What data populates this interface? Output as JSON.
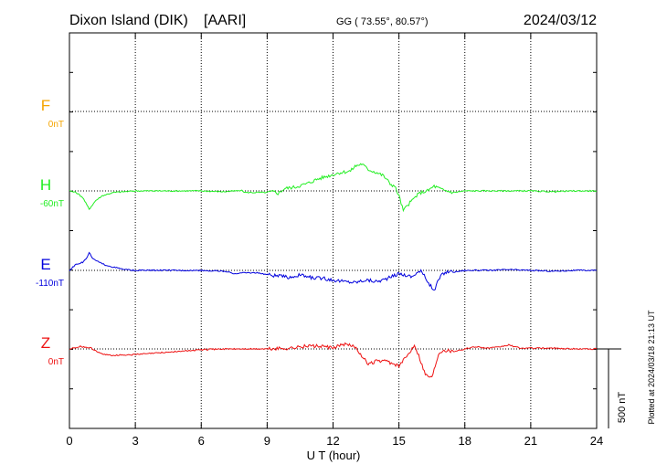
{
  "header": {
    "station": "Dixon Island (DIK)",
    "source": "[AARI]",
    "coords": "GG ( 73.55°,  80.57°)",
    "date": "2024/03/12"
  },
  "chart_data": {
    "type": "line",
    "xlabel": "U T (hour)",
    "xlim": [
      0,
      24
    ],
    "xticks": [
      "0",
      "3",
      "6",
      "9",
      "12",
      "15",
      "18",
      "21",
      "24"
    ],
    "scale_label": "500 nT",
    "plotted_note": "Plotted at 2024/03/18 21:13 UT",
    "colors": {
      "F": "#f5a500",
      "H": "#22ee22",
      "E": "#0000dd",
      "Z": "#ee1111"
    },
    "series": [
      {
        "name": "F",
        "baseline_label": "0nT",
        "points": []
      },
      {
        "name": "H",
        "baseline_label": "-60nT",
        "points": [
          [
            0,
            0
          ],
          [
            0.3,
            -10
          ],
          [
            0.6,
            -40
          ],
          [
            0.9,
            -115
          ],
          [
            1.2,
            -60
          ],
          [
            1.5,
            -30
          ],
          [
            2,
            -10
          ],
          [
            2.5,
            -5
          ],
          [
            3,
            0
          ],
          [
            4,
            0
          ],
          [
            5,
            0
          ],
          [
            6,
            0
          ],
          [
            7,
            -5
          ],
          [
            7.6,
            0
          ],
          [
            7.8,
            5
          ],
          [
            8,
            -10
          ],
          [
            8.5,
            -10
          ],
          [
            9,
            -10
          ],
          [
            9.3,
            -5
          ],
          [
            9.5,
            -15
          ],
          [
            9.8,
            15
          ],
          [
            10.3,
            25
          ],
          [
            10.8,
            45
          ],
          [
            11.3,
            75
          ],
          [
            11.8,
            95
          ],
          [
            12.3,
            115
          ],
          [
            12.8,
            125
          ],
          [
            13,
            155
          ],
          [
            13.3,
            170
          ],
          [
            13.6,
            135
          ],
          [
            14,
            115
          ],
          [
            14.3,
            95
          ],
          [
            14.6,
            45
          ],
          [
            14.8,
            30
          ],
          [
            15,
            -30
          ],
          [
            15.2,
            -125
          ],
          [
            15.4,
            -90
          ],
          [
            15.6,
            -60
          ],
          [
            15.8,
            -30
          ],
          [
            16,
            -10
          ],
          [
            16.3,
            0
          ],
          [
            16.6,
            30
          ],
          [
            17,
            5
          ],
          [
            17.5,
            -10
          ],
          [
            18,
            0
          ],
          [
            19,
            0
          ],
          [
            20,
            0
          ],
          [
            21,
            0
          ],
          [
            22,
            -5
          ],
          [
            23,
            0
          ],
          [
            24,
            0
          ]
        ]
      },
      {
        "name": "E",
        "baseline_label": "-110nT",
        "points": [
          [
            0,
            0
          ],
          [
            0.3,
            40
          ],
          [
            0.6,
            50
          ],
          [
            0.8,
            80
          ],
          [
            0.9,
            110
          ],
          [
            1.1,
            70
          ],
          [
            1.5,
            40
          ],
          [
            2,
            20
          ],
          [
            2.5,
            5
          ],
          [
            3,
            0
          ],
          [
            4,
            0
          ],
          [
            5,
            0
          ],
          [
            6,
            0
          ],
          [
            7,
            -5
          ],
          [
            7.5,
            -20
          ],
          [
            8,
            -15
          ],
          [
            8.5,
            -15
          ],
          [
            9,
            -25
          ],
          [
            9.5,
            -35
          ],
          [
            10,
            -45
          ],
          [
            10.5,
            -30
          ],
          [
            11,
            -45
          ],
          [
            11.5,
            -50
          ],
          [
            12,
            -60
          ],
          [
            12.5,
            -70
          ],
          [
            13,
            -75
          ],
          [
            13.5,
            -60
          ],
          [
            14,
            -70
          ],
          [
            14.5,
            -50
          ],
          [
            15,
            -20
          ],
          [
            15.3,
            -30
          ],
          [
            15.6,
            -40
          ],
          [
            15.8,
            -15
          ],
          [
            16,
            -5
          ],
          [
            16.2,
            -45
          ],
          [
            16.4,
            -90
          ],
          [
            16.6,
            -130
          ],
          [
            16.8,
            -60
          ],
          [
            17,
            -20
          ],
          [
            17.3,
            -5
          ],
          [
            17.5,
            -10
          ],
          [
            18,
            0
          ],
          [
            19,
            0
          ],
          [
            20,
            5
          ],
          [
            21,
            0
          ],
          [
            22,
            -5
          ],
          [
            23,
            0
          ],
          [
            24,
            0
          ]
        ]
      },
      {
        "name": "Z",
        "baseline_label": "0nT",
        "points": [
          [
            0,
            0
          ],
          [
            0.5,
            15
          ],
          [
            1,
            5
          ],
          [
            1.5,
            -35
          ],
          [
            2,
            -40
          ],
          [
            3,
            -35
          ],
          [
            4,
            -25
          ],
          [
            5,
            -15
          ],
          [
            6,
            -5
          ],
          [
            7,
            0
          ],
          [
            8,
            0
          ],
          [
            9,
            0
          ],
          [
            10,
            5
          ],
          [
            11,
            20
          ],
          [
            11.5,
            15
          ],
          [
            12,
            5
          ],
          [
            12.5,
            30
          ],
          [
            13,
            15
          ],
          [
            13.3,
            -40
          ],
          [
            13.6,
            -100
          ],
          [
            14,
            -75
          ],
          [
            14.5,
            -80
          ],
          [
            15,
            -110
          ],
          [
            15.3,
            -55
          ],
          [
            15.5,
            -20
          ],
          [
            15.7,
            30
          ],
          [
            15.9,
            -40
          ],
          [
            16.2,
            -160
          ],
          [
            16.5,
            -180
          ],
          [
            16.8,
            -30
          ],
          [
            17,
            -5
          ],
          [
            17.5,
            -15
          ],
          [
            18,
            0
          ],
          [
            18.5,
            15
          ],
          [
            19,
            5
          ],
          [
            19.5,
            10
          ],
          [
            20,
            25
          ],
          [
            20.5,
            5
          ],
          [
            21,
            5
          ],
          [
            22,
            5
          ],
          [
            23,
            0
          ],
          [
            24,
            0
          ]
        ]
      }
    ]
  }
}
